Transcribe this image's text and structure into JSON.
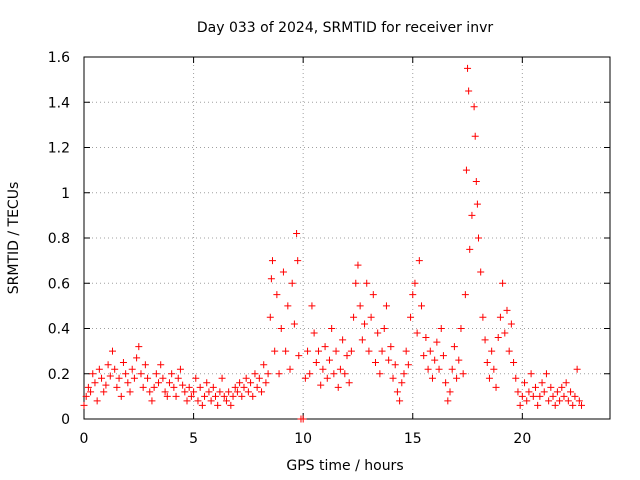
{
  "chart_data": {
    "type": "scatter",
    "title": "Day 033 of 2024, SRMTID for receiver invr",
    "xlabel": "GPS time / hours",
    "ylabel": "SRMTID / TECUs",
    "xlim": [
      0,
      24
    ],
    "ylim": [
      0,
      1.6
    ],
    "xticks": [
      0,
      5,
      10,
      15,
      20
    ],
    "xtick_labels": [
      "0",
      "5",
      "10",
      "15",
      "20"
    ],
    "yticks": [
      0,
      0.2,
      0.4,
      0.6,
      0.8,
      1.0,
      1.2,
      1.4,
      1.6
    ],
    "ytick_labels": [
      "0",
      "0.2",
      "0.4",
      "0.6",
      "0.8",
      "1",
      "1.2",
      "1.4",
      "1.6"
    ],
    "grid": true,
    "marker": "+",
    "color": "#ff0000",
    "series": [
      {
        "name": "SRMTID",
        "points": [
          [
            0.0,
            0.06
          ],
          [
            0.1,
            0.1
          ],
          [
            0.2,
            0.14
          ],
          [
            0.3,
            0.12
          ],
          [
            0.4,
            0.2
          ],
          [
            0.5,
            0.16
          ],
          [
            0.6,
            0.08
          ],
          [
            0.7,
            0.22
          ],
          [
            0.8,
            0.18
          ],
          [
            0.9,
            0.12
          ],
          [
            1.0,
            0.15
          ],
          [
            1.1,
            0.24
          ],
          [
            1.2,
            0.19
          ],
          [
            1.3,
            0.3
          ],
          [
            1.4,
            0.22
          ],
          [
            1.5,
            0.14
          ],
          [
            1.6,
            0.18
          ],
          [
            1.7,
            0.1
          ],
          [
            1.8,
            0.25
          ],
          [
            1.9,
            0.2
          ],
          [
            2.0,
            0.16
          ],
          [
            2.1,
            0.12
          ],
          [
            2.2,
            0.22
          ],
          [
            2.3,
            0.18
          ],
          [
            2.4,
            0.27
          ],
          [
            2.5,
            0.32
          ],
          [
            2.6,
            0.2
          ],
          [
            2.7,
            0.14
          ],
          [
            2.8,
            0.24
          ],
          [
            2.9,
            0.18
          ],
          [
            3.0,
            0.12
          ],
          [
            3.1,
            0.08
          ],
          [
            3.2,
            0.14
          ],
          [
            3.3,
            0.2
          ],
          [
            3.4,
            0.16
          ],
          [
            3.5,
            0.24
          ],
          [
            3.6,
            0.18
          ],
          [
            3.7,
            0.12
          ],
          [
            3.8,
            0.1
          ],
          [
            3.9,
            0.16
          ],
          [
            4.0,
            0.2
          ],
          [
            4.1,
            0.14
          ],
          [
            4.2,
            0.1
          ],
          [
            4.3,
            0.18
          ],
          [
            4.4,
            0.22
          ],
          [
            4.5,
            0.15
          ],
          [
            4.6,
            0.12
          ],
          [
            4.7,
            0.08
          ],
          [
            4.8,
            0.14
          ],
          [
            4.9,
            0.1
          ],
          [
            5.0,
            0.12
          ],
          [
            5.1,
            0.18
          ],
          [
            5.2,
            0.08
          ],
          [
            5.3,
            0.14
          ],
          [
            5.4,
            0.06
          ],
          [
            5.5,
            0.1
          ],
          [
            5.6,
            0.16
          ],
          [
            5.7,
            0.12
          ],
          [
            5.8,
            0.08
          ],
          [
            5.9,
            0.14
          ],
          [
            6.0,
            0.1
          ],
          [
            6.1,
            0.06
          ],
          [
            6.2,
            0.12
          ],
          [
            6.3,
            0.18
          ],
          [
            6.4,
            0.1
          ],
          [
            6.5,
            0.08
          ],
          [
            6.6,
            0.12
          ],
          [
            6.7,
            0.06
          ],
          [
            6.8,
            0.1
          ],
          [
            6.9,
            0.14
          ],
          [
            7.0,
            0.12
          ],
          [
            7.1,
            0.16
          ],
          [
            7.2,
            0.1
          ],
          [
            7.3,
            0.14
          ],
          [
            7.4,
            0.18
          ],
          [
            7.5,
            0.12
          ],
          [
            7.6,
            0.16
          ],
          [
            7.7,
            0.1
          ],
          [
            7.8,
            0.2
          ],
          [
            7.9,
            0.14
          ],
          [
            8.0,
            0.18
          ],
          [
            8.1,
            0.12
          ],
          [
            8.2,
            0.24
          ],
          [
            8.3,
            0.16
          ],
          [
            8.4,
            0.2
          ],
          [
            8.5,
            0.45
          ],
          [
            8.55,
            0.62
          ],
          [
            8.6,
            0.7
          ],
          [
            8.7,
            0.3
          ],
          [
            8.8,
            0.55
          ],
          [
            8.9,
            0.2
          ],
          [
            9.0,
            0.4
          ],
          [
            9.1,
            0.65
          ],
          [
            9.2,
            0.3
          ],
          [
            9.3,
            0.5
          ],
          [
            9.4,
            0.22
          ],
          [
            9.5,
            0.6
          ],
          [
            9.6,
            0.42
          ],
          [
            9.7,
            0.82
          ],
          [
            9.75,
            0.7
          ],
          [
            9.8,
            0.28
          ],
          [
            9.9,
            0.0
          ],
          [
            10.0,
            0.0
          ],
          [
            10.1,
            0.18
          ],
          [
            10.2,
            0.3
          ],
          [
            10.3,
            0.2
          ],
          [
            10.4,
            0.5
          ],
          [
            10.5,
            0.38
          ],
          [
            10.6,
            0.25
          ],
          [
            10.7,
            0.3
          ],
          [
            10.8,
            0.15
          ],
          [
            10.9,
            0.22
          ],
          [
            11.0,
            0.32
          ],
          [
            11.1,
            0.18
          ],
          [
            11.2,
            0.26
          ],
          [
            11.3,
            0.4
          ],
          [
            11.4,
            0.2
          ],
          [
            11.5,
            0.3
          ],
          [
            11.6,
            0.14
          ],
          [
            11.7,
            0.22
          ],
          [
            11.8,
            0.35
          ],
          [
            11.9,
            0.2
          ],
          [
            12.0,
            0.28
          ],
          [
            12.1,
            0.16
          ],
          [
            12.2,
            0.3
          ],
          [
            12.3,
            0.45
          ],
          [
            12.4,
            0.6
          ],
          [
            12.5,
            0.68
          ],
          [
            12.6,
            0.5
          ],
          [
            12.7,
            0.35
          ],
          [
            12.8,
            0.42
          ],
          [
            12.9,
            0.6
          ],
          [
            13.0,
            0.3
          ],
          [
            13.1,
            0.45
          ],
          [
            13.2,
            0.55
          ],
          [
            13.3,
            0.25
          ],
          [
            13.4,
            0.38
          ],
          [
            13.5,
            0.2
          ],
          [
            13.6,
            0.3
          ],
          [
            13.7,
            0.4
          ],
          [
            13.8,
            0.5
          ],
          [
            13.9,
            0.26
          ],
          [
            14.0,
            0.32
          ],
          [
            14.1,
            0.18
          ],
          [
            14.2,
            0.24
          ],
          [
            14.3,
            0.12
          ],
          [
            14.4,
            0.08
          ],
          [
            14.5,
            0.16
          ],
          [
            14.6,
            0.2
          ],
          [
            14.7,
            0.3
          ],
          [
            14.8,
            0.24
          ],
          [
            14.9,
            0.45
          ],
          [
            15.0,
            0.55
          ],
          [
            15.1,
            0.6
          ],
          [
            15.2,
            0.38
          ],
          [
            15.3,
            0.7
          ],
          [
            15.4,
            0.5
          ],
          [
            15.5,
            0.28
          ],
          [
            15.6,
            0.36
          ],
          [
            15.7,
            0.22
          ],
          [
            15.8,
            0.3
          ],
          [
            15.9,
            0.18
          ],
          [
            16.0,
            0.26
          ],
          [
            16.1,
            0.34
          ],
          [
            16.2,
            0.22
          ],
          [
            16.3,
            0.4
          ],
          [
            16.4,
            0.28
          ],
          [
            16.5,
            0.16
          ],
          [
            16.6,
            0.08
          ],
          [
            16.7,
            0.12
          ],
          [
            16.8,
            0.22
          ],
          [
            16.9,
            0.32
          ],
          [
            17.0,
            0.18
          ],
          [
            17.1,
            0.26
          ],
          [
            17.2,
            0.4
          ],
          [
            17.3,
            0.2
          ],
          [
            17.4,
            0.55
          ],
          [
            17.45,
            1.1
          ],
          [
            17.5,
            1.55
          ],
          [
            17.55,
            1.45
          ],
          [
            17.6,
            0.75
          ],
          [
            17.7,
            0.9
          ],
          [
            17.8,
            1.38
          ],
          [
            17.85,
            1.25
          ],
          [
            17.9,
            1.05
          ],
          [
            17.95,
            0.95
          ],
          [
            18.0,
            0.8
          ],
          [
            18.1,
            0.65
          ],
          [
            18.2,
            0.45
          ],
          [
            18.3,
            0.35
          ],
          [
            18.4,
            0.25
          ],
          [
            18.5,
            0.18
          ],
          [
            18.6,
            0.3
          ],
          [
            18.7,
            0.22
          ],
          [
            18.8,
            0.14
          ],
          [
            18.9,
            0.36
          ],
          [
            19.0,
            0.45
          ],
          [
            19.1,
            0.6
          ],
          [
            19.2,
            0.38
          ],
          [
            19.3,
            0.48
          ],
          [
            19.4,
            0.3
          ],
          [
            19.5,
            0.42
          ],
          [
            19.6,
            0.25
          ],
          [
            19.7,
            0.18
          ],
          [
            19.8,
            0.12
          ],
          [
            19.9,
            0.06
          ],
          [
            20.0,
            0.1
          ],
          [
            20.1,
            0.16
          ],
          [
            20.2,
            0.08
          ],
          [
            20.3,
            0.12
          ],
          [
            20.4,
            0.2
          ],
          [
            20.5,
            0.1
          ],
          [
            20.6,
            0.14
          ],
          [
            20.7,
            0.06
          ],
          [
            20.8,
            0.1
          ],
          [
            20.9,
            0.16
          ],
          [
            21.0,
            0.12
          ],
          [
            21.1,
            0.2
          ],
          [
            21.2,
            0.08
          ],
          [
            21.3,
            0.14
          ],
          [
            21.4,
            0.1
          ],
          [
            21.5,
            0.06
          ],
          [
            21.6,
            0.12
          ],
          [
            21.7,
            0.08
          ],
          [
            21.8,
            0.14
          ],
          [
            21.9,
            0.1
          ],
          [
            22.0,
            0.16
          ],
          [
            22.1,
            0.08
          ],
          [
            22.2,
            0.12
          ],
          [
            22.3,
            0.06
          ],
          [
            22.4,
            0.1
          ],
          [
            22.5,
            0.22
          ],
          [
            22.6,
            0.08
          ],
          [
            22.7,
            0.06
          ]
        ]
      }
    ]
  }
}
